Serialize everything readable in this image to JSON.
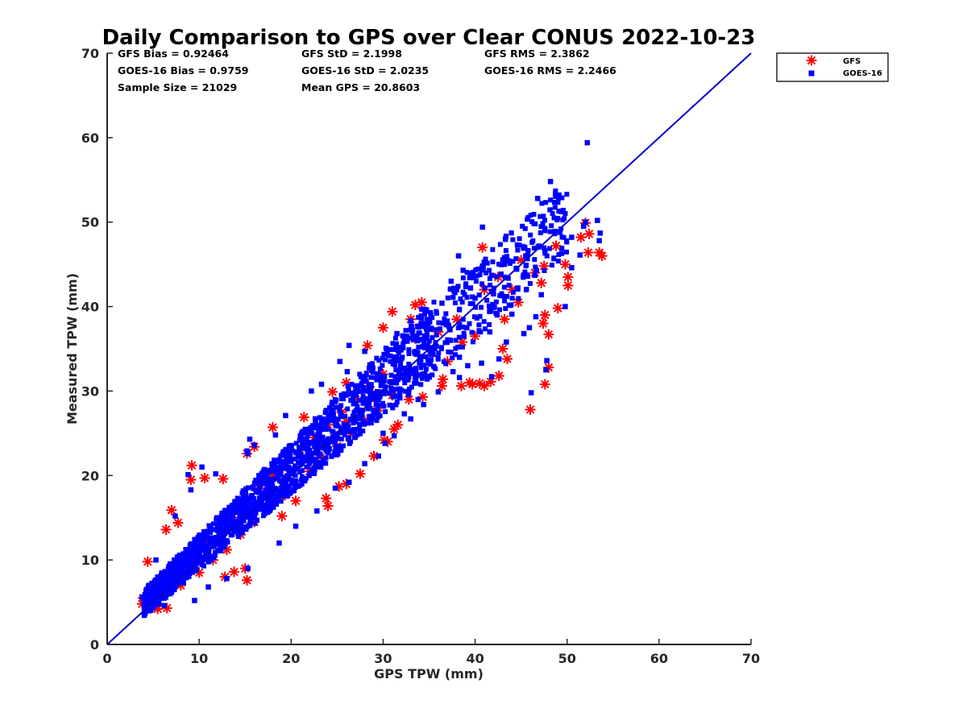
{
  "chart_data": {
    "type": "scatter",
    "title": "Daily Comparison to GPS over Clear CONUS 2022-10-23",
    "xlabel": "GPS TPW (mm)",
    "ylabel": "Measured TPW (mm)",
    "xlim": [
      0,
      70
    ],
    "ylim": [
      0,
      70
    ],
    "xticks": [
      "0",
      "10",
      "20",
      "30",
      "40",
      "50",
      "60",
      "70"
    ],
    "yticks": [
      "0",
      "10",
      "20",
      "30",
      "40",
      "50",
      "60",
      "70"
    ],
    "grid": false,
    "legend_position": "outside top-right",
    "reference_line": {
      "name": "1:1 line",
      "x": [
        0,
        70
      ],
      "y": [
        0,
        70
      ],
      "color": "#0000cc"
    },
    "stats": [
      [
        "GFS Bias = 0.92464",
        "GFS StD = 2.1998",
        "GFS RMS = 2.3862"
      ],
      [
        "GOES-16 Bias = 0.9759",
        "GOES-16 StD = 2.0235",
        "GOES-16 RMS = 2.2466"
      ],
      [
        "Sample Size = 21029",
        "Mean GPS = 20.8603",
        ""
      ]
    ],
    "series": [
      {
        "name": "GFS",
        "marker": "asterisk",
        "color": "#ff0000",
        "points": [
          [
            9.2,
            21.2
          ],
          [
            9.1,
            19.5
          ],
          [
            7.0,
            15.9
          ],
          [
            6.4,
            13.6
          ],
          [
            7.7,
            14.4
          ],
          [
            4.4,
            9.8
          ],
          [
            3.9,
            5.5
          ],
          [
            3.8,
            4.8
          ],
          [
            5.5,
            4.2
          ],
          [
            6.5,
            4.3
          ],
          [
            15.2,
            7.6
          ],
          [
            15.0,
            9.0
          ],
          [
            12.8,
            8.0
          ],
          [
            13.8,
            8.6
          ],
          [
            19.0,
            15.2
          ],
          [
            20.5,
            17.0
          ],
          [
            24.0,
            16.4
          ],
          [
            23.8,
            17.3
          ],
          [
            25.2,
            18.7
          ],
          [
            26.0,
            19.0
          ],
          [
            27.5,
            20.2
          ],
          [
            29.0,
            22.3
          ],
          [
            30.5,
            24.0
          ],
          [
            30.1,
            24.2
          ],
          [
            31.2,
            25.5
          ],
          [
            31.6,
            26.0
          ],
          [
            32.8,
            29.0
          ],
          [
            34.3,
            29.3
          ],
          [
            36.4,
            30.6
          ],
          [
            36.5,
            31.4
          ],
          [
            38.5,
            30.6
          ],
          [
            39.4,
            31.0
          ],
          [
            39.7,
            30.8
          ],
          [
            40.5,
            30.9
          ],
          [
            41.0,
            30.6
          ],
          [
            41.7,
            31.1
          ],
          [
            42.6,
            31.8
          ],
          [
            43.5,
            33.8
          ],
          [
            43.0,
            35.0
          ],
          [
            46.0,
            27.8
          ],
          [
            47.6,
            30.8
          ],
          [
            48.0,
            32.8
          ],
          [
            48.0,
            36.7
          ],
          [
            47.4,
            38.0
          ],
          [
            47.6,
            39.0
          ],
          [
            49.0,
            39.8
          ],
          [
            50.1,
            42.5
          ],
          [
            50.1,
            43.5
          ],
          [
            49.8,
            45.0
          ],
          [
            51.5,
            48.2
          ],
          [
            52.4,
            48.6
          ],
          [
            52.0,
            49.9
          ],
          [
            52.3,
            46.4
          ],
          [
            53.5,
            46.4
          ],
          [
            53.8,
            46.0
          ],
          [
            40.8,
            47.0
          ],
          [
            31.0,
            39.4
          ],
          [
            30.0,
            37.5
          ],
          [
            33.5,
            40.2
          ],
          [
            34.2,
            40.5
          ],
          [
            10.6,
            19.7
          ],
          [
            12.6,
            19.6
          ],
          [
            15.2,
            22.6
          ],
          [
            16.0,
            23.4
          ],
          [
            18.0,
            25.7
          ],
          [
            21.4,
            26.9
          ],
          [
            24.5,
            29.9
          ],
          [
            26.0,
            31.0
          ],
          [
            28.3,
            35.4
          ],
          [
            33.5,
            36.2
          ],
          [
            33.0,
            38.5
          ],
          [
            35.0,
            35.0
          ],
          [
            37.0,
            33.5
          ],
          [
            38.6,
            35.8
          ],
          [
            40.0,
            36.5
          ],
          [
            43.2,
            38.5
          ],
          [
            44.7,
            40.5
          ],
          [
            47.2,
            42.8
          ],
          [
            47.5,
            44.8
          ],
          [
            48.8,
            47.2
          ],
          [
            6.0,
            8.0
          ],
          [
            7.5,
            9.5
          ],
          [
            9.0,
            11.0
          ],
          [
            10.5,
            12.5
          ],
          [
            12.0,
            13.8
          ],
          [
            13.5,
            15.5
          ],
          [
            15.0,
            17.0
          ],
          [
            16.5,
            18.5
          ],
          [
            18.0,
            20.0
          ],
          [
            19.5,
            21.5
          ],
          [
            21.0,
            23.0
          ],
          [
            22.5,
            24.5
          ],
          [
            24.0,
            26.0
          ],
          [
            25.5,
            27.5
          ],
          [
            27.0,
            29.0
          ],
          [
            28.5,
            30.5
          ],
          [
            30.0,
            32.0
          ],
          [
            8.0,
            7.0
          ],
          [
            10.0,
            8.5
          ],
          [
            11.5,
            10.0
          ],
          [
            13.0,
            11.2
          ],
          [
            14.5,
            13.0
          ],
          [
            16.0,
            14.5
          ],
          [
            17.5,
            16.0
          ],
          [
            19.0,
            17.5
          ],
          [
            20.5,
            19.0
          ],
          [
            22.0,
            20.5
          ],
          [
            23.5,
            22.0
          ],
          [
            25.0,
            23.5
          ],
          [
            26.5,
            25.0
          ],
          [
            28.0,
            26.5
          ],
          [
            29.5,
            28.0
          ],
          [
            31.0,
            29.5
          ],
          [
            5.0,
            6.0
          ],
          [
            6.5,
            7.0
          ],
          [
            8.5,
            9.5
          ],
          [
            11.0,
            12.0
          ],
          [
            14.0,
            14.5
          ],
          [
            17.0,
            17.8
          ],
          [
            20.0,
            20.5
          ],
          [
            23.0,
            23.6
          ],
          [
            26.0,
            26.4
          ],
          [
            29.0,
            29.3
          ],
          [
            36.0,
            37.0
          ],
          [
            38.0,
            38.5
          ],
          [
            41.0,
            42.0
          ],
          [
            42.5,
            43.5
          ],
          [
            45.0,
            45.5
          ],
          [
            44.0,
            42.0
          ],
          [
            46.5,
            44.0
          ]
        ]
      },
      {
        "name": "GOES-16",
        "marker": "square",
        "color": "#0000ff",
        "points": [
          [
            52.2,
            59.4
          ],
          [
            48.2,
            54.8
          ],
          [
            46.8,
            52.8
          ],
          [
            49.4,
            51.3
          ],
          [
            52.0,
            50.0
          ],
          [
            53.3,
            50.2
          ],
          [
            53.6,
            48.7
          ],
          [
            53.5,
            47.8
          ],
          [
            51.8,
            49.5
          ],
          [
            50.5,
            48.2
          ],
          [
            48.7,
            48.9
          ],
          [
            47.6,
            49.0
          ],
          [
            45.4,
            47.0
          ],
          [
            44.6,
            47.3
          ],
          [
            40.8,
            49.4
          ],
          [
            38.2,
            46.0
          ],
          [
            38.7,
            44.3
          ],
          [
            37.4,
            43.0
          ],
          [
            39.5,
            42.2
          ],
          [
            41.8,
            43.7
          ],
          [
            45.3,
            36.8
          ],
          [
            46.6,
            38.8
          ],
          [
            45.9,
            37.5
          ],
          [
            47.8,
            33.6
          ],
          [
            47.7,
            32.5
          ],
          [
            46.1,
            29.8
          ],
          [
            42.6,
            33.8
          ],
          [
            43.4,
            35.8
          ],
          [
            41.6,
            37.0
          ],
          [
            38.3,
            34.0
          ],
          [
            37.6,
            32.3
          ],
          [
            33.8,
            29.0
          ],
          [
            33.0,
            26.7
          ],
          [
            30.2,
            23.8
          ],
          [
            30.0,
            25.0
          ],
          [
            28.4,
            28.7
          ],
          [
            27.9,
            30.4
          ],
          [
            27.0,
            30.6
          ],
          [
            26.3,
            35.4
          ],
          [
            28.0,
            34.7
          ],
          [
            26.1,
            32.3
          ],
          [
            25.3,
            33.5
          ],
          [
            23.3,
            30.8
          ],
          [
            22.2,
            30.0
          ],
          [
            19.4,
            27.1
          ],
          [
            18.3,
            24.8
          ],
          [
            15.5,
            24.3
          ],
          [
            16.0,
            23.6
          ],
          [
            15.2,
            22.9
          ],
          [
            15.3,
            22.6
          ],
          [
            11.8,
            20.2
          ],
          [
            10.3,
            21.0
          ],
          [
            9.1,
            18.3
          ],
          [
            8.8,
            20.1
          ],
          [
            7.4,
            15.2
          ],
          [
            5.3,
            10.0
          ],
          [
            3.8,
            5.6
          ],
          [
            4.3,
            4.4
          ],
          [
            6.2,
            4.6
          ],
          [
            9.5,
            5.2
          ],
          [
            11.0,
            6.8
          ],
          [
            13.0,
            7.8
          ],
          [
            15.3,
            9.0
          ],
          [
            18.7,
            12.0
          ],
          [
            20.5,
            14.0
          ],
          [
            22.8,
            15.8
          ],
          [
            24.8,
            18.5
          ],
          [
            26.3,
            19.2
          ],
          [
            28.0,
            21.4
          ],
          [
            29.5,
            22.3
          ],
          [
            31.2,
            24.7
          ],
          [
            32.3,
            27.3
          ],
          [
            34.4,
            28.4
          ],
          [
            36.0,
            29.9
          ],
          [
            38.3,
            31.6
          ],
          [
            39.2,
            33.0
          ],
          [
            40.7,
            33.3
          ],
          [
            41.8,
            31.7
          ],
          [
            35.2,
            33.7
          ],
          [
            31.5,
            36.8
          ],
          [
            33.0,
            38.3
          ],
          [
            34.2,
            39.7
          ],
          [
            36.4,
            40.4
          ],
          [
            38.0,
            42.0
          ],
          [
            40.8,
            44.8
          ],
          [
            43.2,
            45.0
          ],
          [
            44.5,
            44.5
          ],
          [
            46.5,
            43.7
          ],
          [
            47.2,
            41.4
          ],
          [
            49.8,
            40.0
          ],
          [
            50.5,
            44.6
          ],
          [
            51.4,
            46.1
          ],
          [
            49.4,
            46.3
          ],
          [
            44.0,
            39.1
          ],
          [
            42.4,
            39.0
          ],
          [
            39.1,
            37.5
          ],
          [
            37.3,
            36.0
          ],
          [
            35.6,
            35.0
          ],
          [
            6.0,
            7.5
          ],
          [
            7.5,
            9.0
          ],
          [
            9.0,
            10.5
          ],
          [
            10.5,
            12.0
          ],
          [
            12.0,
            13.5
          ],
          [
            13.5,
            15.0
          ],
          [
            15.0,
            16.5
          ],
          [
            16.5,
            18.0
          ],
          [
            18.0,
            19.5
          ],
          [
            19.5,
            21.0
          ],
          [
            21.0,
            22.5
          ],
          [
            22.5,
            24.0
          ],
          [
            24.0,
            25.5
          ],
          [
            25.5,
            27.0
          ],
          [
            27.0,
            28.5
          ],
          [
            28.5,
            30.0
          ],
          [
            30.0,
            31.5
          ],
          [
            5.5,
            5.8
          ],
          [
            8.0,
            8.3
          ],
          [
            10.0,
            9.8
          ],
          [
            12.5,
            11.8
          ],
          [
            14.5,
            13.8
          ],
          [
            17.0,
            16.2
          ],
          [
            19.5,
            18.8
          ],
          [
            22.0,
            21.5
          ],
          [
            24.5,
            24.0
          ],
          [
            27.0,
            26.5
          ],
          [
            29.5,
            29.0
          ],
          [
            32.0,
            31.8
          ],
          [
            40.0,
            41.0
          ],
          [
            42.0,
            41.5
          ],
          [
            45.5,
            46.0
          ]
        ]
      }
    ]
  }
}
